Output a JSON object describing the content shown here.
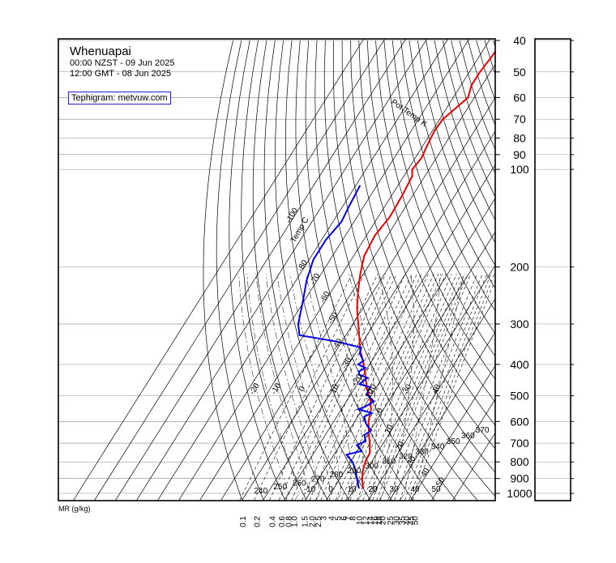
{
  "header": {
    "station": "Whenuapai",
    "time_local": "00:00 NZST - 09 Jun 2025",
    "time_utc": "12:00 GMT - 08 Jun 2025",
    "credit": "Tephigram: metvuw.com"
  },
  "chart_data": {
    "type": "line",
    "title": "Whenuapai",
    "pressure_labels": [
      "40",
      "50",
      "60",
      "70",
      "80",
      "90",
      "100",
      "200",
      "300",
      "400",
      "500",
      "600",
      "700",
      "800",
      "900",
      "1000"
    ],
    "mixing_ratio_axis_label": "MR (g/kg)",
    "mixing_ratio_labels": [
      "0.1",
      "0.2",
      "0.4",
      "0.6",
      "0.8",
      "1.0",
      "1.5",
      "2.0",
      "2.5",
      "3",
      "4",
      "5",
      "6",
      "7",
      "8",
      "10",
      "12",
      "14",
      "16",
      "18",
      "20",
      "25",
      "30",
      "35",
      "40",
      "45",
      "50"
    ],
    "temp_label": "Temp C",
    "theta_label": "Pot Temp K",
    "isotherm_labels": [
      "-100",
      "-80",
      "-70",
      "-60",
      "-50",
      "-40",
      "-30",
      "-20",
      "-10",
      "0",
      "10",
      "20",
      "30",
      "40",
      "50"
    ],
    "theta_labels": [
      "240",
      "250",
      "260",
      "270",
      "280",
      "290",
      "300",
      "310",
      "320",
      "330",
      "340",
      "350",
      "360",
      "370",
      "380",
      "390",
      "400",
      "410",
      "420",
      "430",
      "440",
      "450",
      "460",
      "470",
      "480",
      "490",
      "500",
      "510",
      "520",
      "530",
      "540",
      "550",
      "560",
      "570",
      "580",
      "590"
    ],
    "sat_adiabat_labels": [
      "-20",
      "-10",
      "0",
      "10",
      "20",
      "30",
      "40"
    ],
    "bottom_temp_labels": [
      "20",
      "-10",
      "0",
      "10",
      "20",
      "30",
      "40",
      "50"
    ],
    "series": [
      {
        "name": "Temperature",
        "color": "#ee0000",
        "points": [
          {
            "p": 967,
            "t": 14.0
          },
          {
            "p": 900,
            "t": 10.5
          },
          {
            "p": 850,
            "t": 8.5
          },
          {
            "p": 800,
            "t": 7.0
          },
          {
            "p": 750,
            "t": 6.5
          },
          {
            "p": 700,
            "t": 3.5
          },
          {
            "p": 650,
            "t": 0.0
          },
          {
            "p": 600,
            "t": -3.5
          },
          {
            "p": 550,
            "t": -6.0
          },
          {
            "p": 520,
            "t": -8.5
          },
          {
            "p": 500,
            "t": -11.0
          },
          {
            "p": 470,
            "t": -14.5
          },
          {
            "p": 440,
            "t": -18.0
          },
          {
            "p": 410,
            "t": -21.5
          },
          {
            "p": 385,
            "t": -25.0
          },
          {
            "p": 360,
            "t": -29.0
          },
          {
            "p": 330,
            "t": -33.0
          },
          {
            "p": 300,
            "t": -37.5
          },
          {
            "p": 270,
            "t": -42.5
          },
          {
            "p": 240,
            "t": -47.0
          },
          {
            "p": 210,
            "t": -51.5
          },
          {
            "p": 185,
            "t": -55.0
          },
          {
            "p": 160,
            "t": -56.0
          },
          {
            "p": 140,
            "t": -54.5
          },
          {
            "p": 120,
            "t": -55.0
          },
          {
            "p": 105,
            "t": -56.0
          },
          {
            "p": 100,
            "t": -58.0
          },
          {
            "p": 92,
            "t": -57.0
          },
          {
            "p": 85,
            "t": -58.0
          },
          {
            "p": 76,
            "t": -59.0
          },
          {
            "p": 70,
            "t": -58.5
          },
          {
            "p": 60,
            "t": -53.0
          },
          {
            "p": 55,
            "t": -55.0
          },
          {
            "p": 50,
            "t": -55.0
          },
          {
            "p": 45,
            "t": -54.0
          },
          {
            "p": 40,
            "t": -53.5
          }
        ]
      },
      {
        "name": "Dew Point",
        "color": "#0000ee",
        "points": [
          {
            "p": 967,
            "t": 12.0
          },
          {
            "p": 900,
            "t": 8.0
          },
          {
            "p": 850,
            "t": 5.0
          },
          {
            "p": 800,
            "t": 1.0
          },
          {
            "p": 760,
            "t": -4.0
          },
          {
            "p": 740,
            "t": 2.0
          },
          {
            "p": 710,
            "t": -2.0
          },
          {
            "p": 690,
            "t": 1.0
          },
          {
            "p": 660,
            "t": -1.5
          },
          {
            "p": 640,
            "t": 0.5
          },
          {
            "p": 610,
            "t": -4.0
          },
          {
            "p": 580,
            "t": -7.0
          },
          {
            "p": 565,
            "t": -4.5
          },
          {
            "p": 550,
            "t": -12.0
          },
          {
            "p": 540,
            "t": -9.5
          },
          {
            "p": 520,
            "t": -7.0
          },
          {
            "p": 495,
            "t": -12.5
          },
          {
            "p": 470,
            "t": -13.0
          },
          {
            "p": 460,
            "t": -19.0
          },
          {
            "p": 440,
            "t": -17.0
          },
          {
            "p": 430,
            "t": -22.0
          },
          {
            "p": 420,
            "t": -23.0
          },
          {
            "p": 410,
            "t": -21.0
          },
          {
            "p": 400,
            "t": -25.5
          },
          {
            "p": 390,
            "t": -24.0
          },
          {
            "p": 370,
            "t": -28.0
          },
          {
            "p": 355,
            "t": -29.0
          },
          {
            "p": 340,
            "t": -42.5
          },
          {
            "p": 325,
            "t": -62.0
          },
          {
            "p": 300,
            "t": -66.0
          },
          {
            "p": 260,
            "t": -70.0
          },
          {
            "p": 220,
            "t": -75.0
          },
          {
            "p": 190,
            "t": -78.0
          },
          {
            "p": 165,
            "t": -78.0
          },
          {
            "p": 145,
            "t": -76.0
          },
          {
            "p": 130,
            "t": -77.0
          },
          {
            "p": 112,
            "t": -78.0
          }
        ]
      }
    ]
  }
}
